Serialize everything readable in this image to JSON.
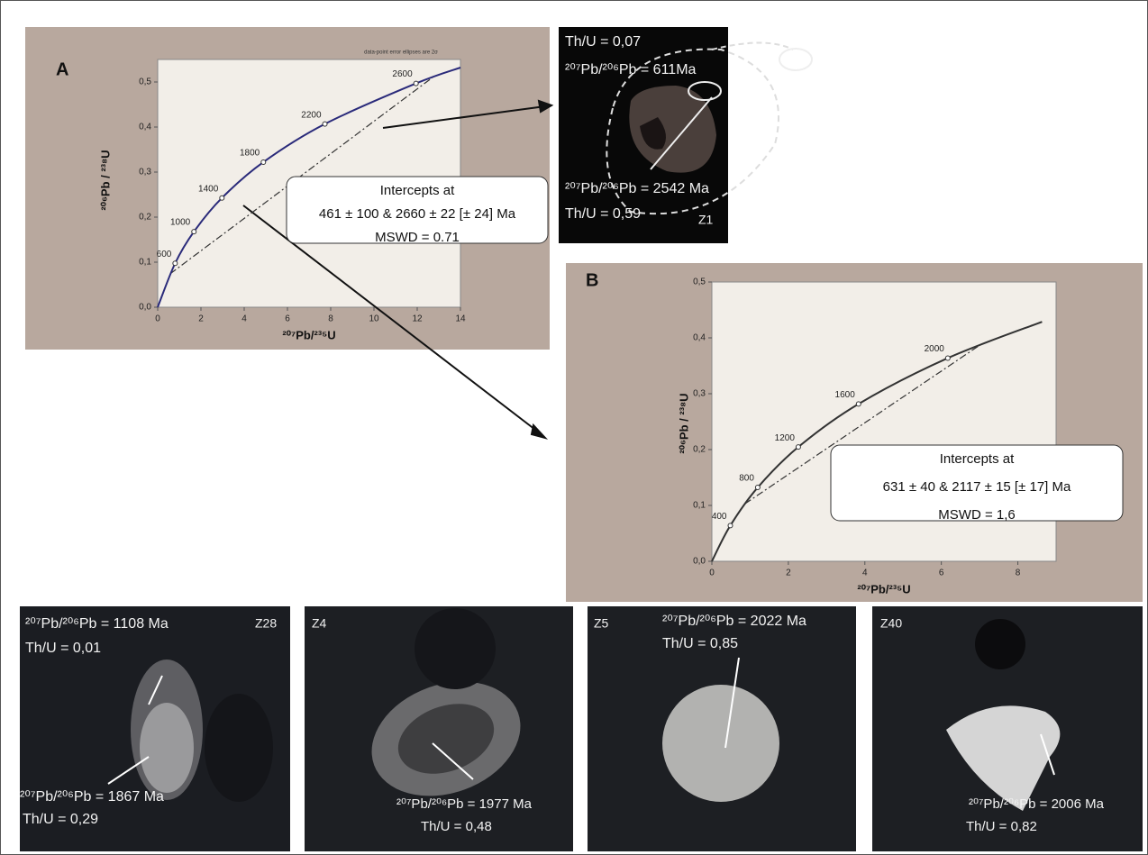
{
  "chart_data": [
    {
      "type": "line",
      "title": "A",
      "note": "data-point error ellipses are 2σ",
      "xlabel": "²⁰⁷Pb/²³⁵U",
      "ylabel": "²⁰⁶Pb / ²³⁸U",
      "xlim": [
        0,
        14
      ],
      "xticks": [
        0,
        2,
        4,
        6,
        8,
        10,
        12,
        14
      ],
      "ylim": [
        0,
        0.55
      ],
      "yticks": [
        {
          "value": 0,
          "label": "0,0"
        },
        {
          "value": 0.1,
          "label": "0,1"
        },
        {
          "value": 0.2,
          "label": "0,2"
        },
        {
          "value": 0.3,
          "label": "0,3"
        },
        {
          "value": 0.4,
          "label": "0,4"
        },
        {
          "value": 0.5,
          "label": "0,5"
        }
      ],
      "concordia": {
        "color": "#2a2a7a",
        "x": [
          0,
          0.806,
          1.677,
          2.97,
          4.886,
          7.73,
          11.944,
          14.0
        ],
        "values": [
          0,
          0.0975,
          0.1678,
          0.2426,
          0.3221,
          0.4067,
          0.4968,
          0.532
        ],
        "point_labels": [
          null,
          600,
          1000,
          1400,
          1800,
          2200,
          2600,
          null
        ]
      },
      "discordia": {
        "color": "#333333",
        "x": [
          0.575,
          12.73
        ],
        "values": [
          0.0741,
          0.5108
        ]
      },
      "box": [
        "Intercepts at",
        "461 ± 100 & 2660 ± 22  [± 24]  Ma",
        "MSWD = 0.71"
      ]
    },
    {
      "type": "line",
      "title": "B",
      "xlabel": "²⁰⁷Pb/²³⁵U",
      "ylabel": "²⁰⁶Pb / ²³⁸U",
      "xlim": [
        0,
        9
      ],
      "xticks": [
        0,
        2,
        4,
        6,
        8
      ],
      "ylim": [
        0,
        0.5
      ],
      "yticks": [
        {
          "value": 0,
          "label": "0,0"
        },
        {
          "value": 0.1,
          "label": "0,1"
        },
        {
          "value": 0.2,
          "label": "0,2"
        },
        {
          "value": 0.3,
          "label": "0,3"
        },
        {
          "value": 0.4,
          "label": "0,4"
        },
        {
          "value": 0.5,
          "label": "0,5"
        }
      ],
      "concordia": {
        "color": "#333333",
        "x": [
          0,
          0.483,
          1.199,
          2.26,
          3.835,
          6.169,
          8.633
        ],
        "values": [
          0,
          0.064,
          0.1322,
          0.2046,
          0.2817,
          0.3638,
          0.4288
        ],
        "point_labels": [
          null,
          400,
          800,
          1200,
          1600,
          2000,
          null
        ]
      },
      "discordia": {
        "color": "#333333",
        "x": [
          0.862,
          7.044
        ],
        "values": [
          0.1028,
          0.3888
        ]
      },
      "box": [
        "Intercepts at",
        "631 ± 40 & 2117 ± 15  [± 17]  Ma",
        "MSWD = 1,6"
      ]
    }
  ],
  "images": [
    {
      "texts": [
        "Th/U = 0,07",
        "²⁰⁷Pb/²⁰⁶Pb = 611Ma",
        "²⁰⁷Pb/²⁰⁶Pb = 2542 Ma",
        "Th/U = 0,59",
        "Z1"
      ]
    },
    {
      "texts": [
        "²⁰⁷Pb/²⁰⁶Pb  = 1108 Ma",
        "Th/U = 0,01",
        "Z28",
        "²⁰⁷Pb/²⁰⁶Pb  = 1867 Ma",
        "Th/U = 0,29"
      ]
    },
    {
      "texts": [
        "Z4",
        "²⁰⁷Pb/²⁰⁶Pb = 1977 Ma",
        "Th/U = 0,48"
      ]
    },
    {
      "texts": [
        "Z5",
        "²⁰⁷Pb/²⁰⁶Pb  = 2022 Ma",
        "Th/U = 0,85"
      ]
    },
    {
      "texts": [
        "Z40",
        "²⁰⁷Pb/²⁰⁶Pb  = 2006 Ma",
        "Th/U = 0,82"
      ]
    }
  ]
}
